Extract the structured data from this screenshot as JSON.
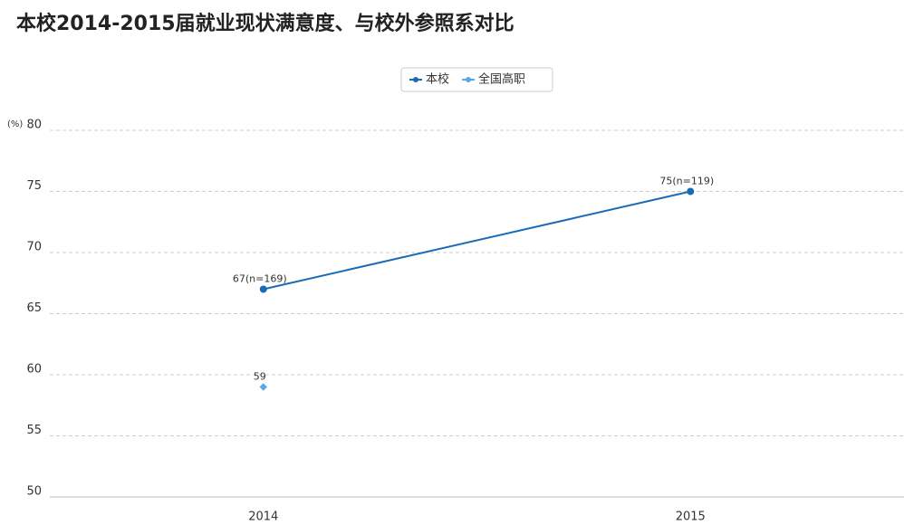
{
  "chart_data": {
    "type": "line",
    "title": "本校2014-2015届就业现状满意度、与校外参照系对比",
    "y_unit": "(%)",
    "categories": [
      "2014",
      "2015"
    ],
    "series": [
      {
        "name": "本校",
        "color": "#1a6bb5",
        "values": [
          67,
          75
        ],
        "value_labels": [
          "67(n=169)",
          "75(n=119)"
        ]
      },
      {
        "name": "全国高职",
        "color": "#5aa9e6",
        "values": [
          59,
          null
        ],
        "value_labels": [
          "59",
          null
        ]
      }
    ],
    "ylim": [
      50,
      80
    ],
    "yticks": [
      50,
      55,
      60,
      65,
      70,
      75,
      80
    ],
    "grid": true,
    "legend": "top"
  }
}
